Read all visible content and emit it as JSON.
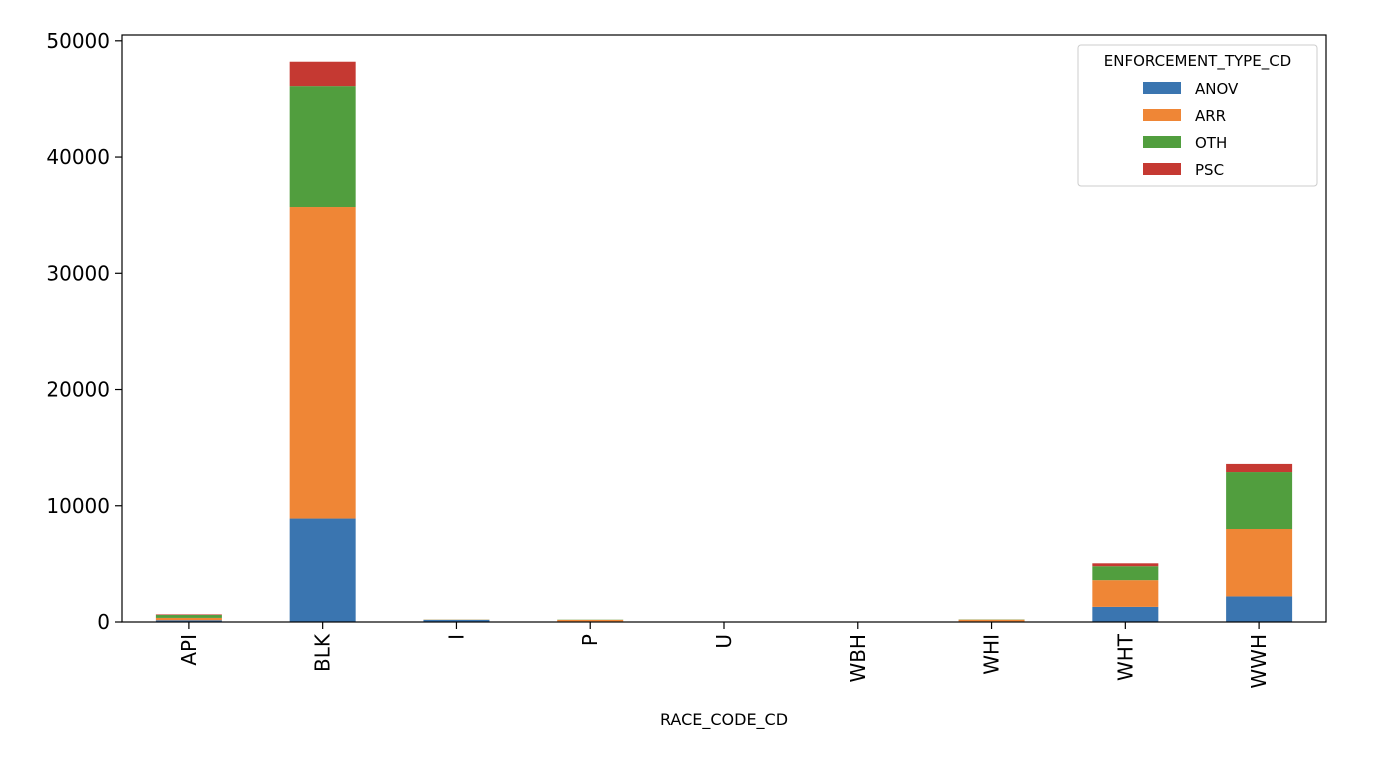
{
  "chart_data": {
    "type": "bar",
    "stacked": true,
    "title": "",
    "xlabel": "RACE_CODE_CD",
    "ylabel": "",
    "categories": [
      "API",
      "BLK",
      "I",
      "P",
      "U",
      "WBH",
      "WHI",
      "WHT",
      "WWH"
    ],
    "ylim": [
      0,
      50500
    ],
    "yticks": [
      0,
      10000,
      20000,
      30000,
      40000,
      50000
    ],
    "ytick_labels": [
      "0",
      "10000",
      "20000",
      "30000",
      "40000",
      "50000"
    ],
    "grid": false,
    "legend": {
      "title": "ENFORCEMENT_TYPE_CD",
      "position": "top-right"
    },
    "series": [
      {
        "name": "ANOV",
        "color": "#3a75b0",
        "values": [
          150,
          8900,
          180,
          50,
          0,
          0,
          50,
          1300,
          2200
        ]
      },
      {
        "name": "ARR",
        "color": "#ef8636",
        "values": [
          200,
          26800,
          20,
          130,
          10,
          5,
          150,
          2300,
          5800
        ]
      },
      {
        "name": "OTH",
        "color": "#519e3e",
        "values": [
          250,
          10400,
          10,
          20,
          5,
          2,
          20,
          1200,
          4900
        ]
      },
      {
        "name": "PSC",
        "color": "#c53932",
        "values": [
          50,
          2100,
          0,
          0,
          0,
          0,
          0,
          250,
          700
        ]
      }
    ]
  }
}
